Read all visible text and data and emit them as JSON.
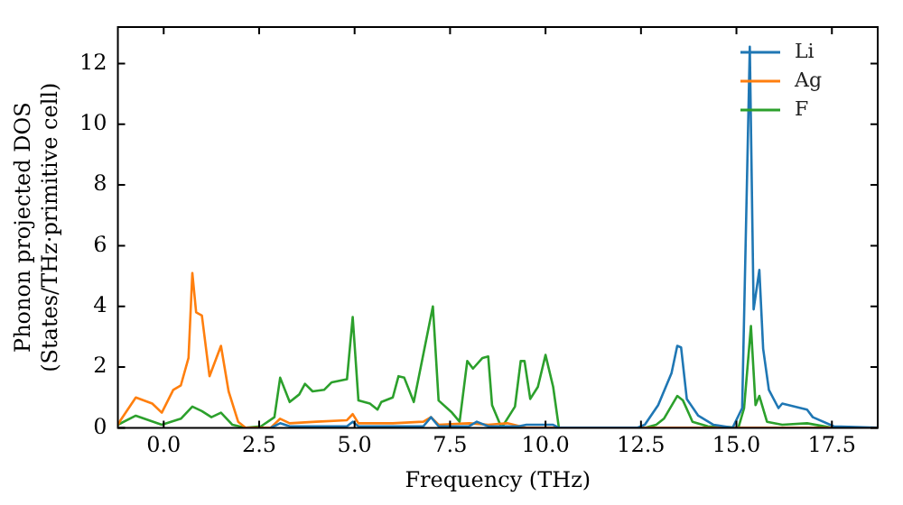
{
  "chart_data": {
    "type": "line",
    "xlabel": "Frequency (THz)",
    "ylabel": "Phonon projected DOS\n(States/THz·primitive cell)",
    "xlim": [
      -1.2,
      18.7
    ],
    "ylim": [
      0,
      13.2
    ],
    "xticks": [
      {
        "value": 0,
        "label": "0.0"
      },
      {
        "value": 2.5,
        "label": "2.5"
      },
      {
        "value": 5,
        "label": "5.0"
      },
      {
        "value": 7.5,
        "label": "7.5"
      },
      {
        "value": 10,
        "label": "10.0"
      },
      {
        "value": 12.5,
        "label": "12.5"
      },
      {
        "value": 15,
        "label": "15.0"
      },
      {
        "value": 17.5,
        "label": "17.5"
      }
    ],
    "yticks": [
      0,
      2,
      4,
      6,
      8,
      10,
      12
    ],
    "grid": false,
    "legend": "top right",
    "marker": "none",
    "line_style": "solid",
    "series": [
      {
        "name": "Li",
        "color": "#1f77b4",
        "x": [
          2.8,
          3.05,
          3.3,
          4.8,
          4.95,
          5.1,
          6.8,
          7.0,
          7.2,
          8.0,
          8.2,
          8.5,
          9.3,
          9.5,
          10.2,
          10.35,
          12.4,
          12.6,
          12.95,
          13.3,
          13.45,
          13.55,
          13.7,
          14.0,
          14.4,
          14.9,
          15.15,
          15.35,
          15.45,
          15.6,
          15.7,
          15.85,
          16.1,
          16.2,
          16.85,
          17.0,
          17.55,
          18.7
        ],
        "values": [
          0,
          0.15,
          0.05,
          0.05,
          0.2,
          0.05,
          0.05,
          0.35,
          0.05,
          0.05,
          0.2,
          0.05,
          0.05,
          0.1,
          0.1,
          0,
          0,
          0.1,
          0.75,
          1.8,
          2.7,
          2.65,
          0.95,
          0.4,
          0.1,
          0,
          0.65,
          12.55,
          3.9,
          5.2,
          2.6,
          1.25,
          0.65,
          0.8,
          0.6,
          0.35,
          0.05,
          0
        ]
      },
      {
        "name": "Ag",
        "color": "#ff7f0e",
        "x": [
          -1.2,
          -1.13,
          -0.73,
          -0.3,
          -0.05,
          0.25,
          0.45,
          0.65,
          0.75,
          0.85,
          1.0,
          1.2,
          1.5,
          1.7,
          1.95,
          2.15,
          2.8,
          3.05,
          3.3,
          4.0,
          4.8,
          4.95,
          5.1,
          6.0,
          6.8,
          7.0,
          7.2,
          8.0,
          8.5,
          9.0,
          9.5,
          10.35,
          18.7
        ],
        "values": [
          0.1,
          0.25,
          1.0,
          0.8,
          0.5,
          1.25,
          1.4,
          2.3,
          5.1,
          3.8,
          3.7,
          1.7,
          2.7,
          1.2,
          0.2,
          0,
          0,
          0.3,
          0.15,
          0.2,
          0.25,
          0.45,
          0.15,
          0.15,
          0.2,
          0.35,
          0.1,
          0.15,
          0.1,
          0.15,
          0,
          0,
          0
        ]
      },
      {
        "name": "F",
        "color": "#2ca02c",
        "x": [
          -1.2,
          -0.73,
          -0.05,
          0.45,
          0.75,
          1.0,
          1.25,
          1.5,
          1.8,
          2.15,
          2.55,
          2.9,
          3.05,
          3.3,
          3.55,
          3.7,
          3.9,
          4.2,
          4.4,
          4.8,
          4.95,
          5.1,
          5.4,
          5.6,
          5.7,
          6.0,
          6.15,
          6.3,
          6.55,
          7.05,
          7.2,
          7.55,
          7.75,
          7.95,
          8.1,
          8.35,
          8.5,
          8.6,
          8.85,
          9.2,
          9.35,
          9.45,
          9.6,
          9.8,
          10.0,
          10.2,
          10.35,
          12.6,
          12.9,
          13.1,
          13.45,
          13.6,
          13.85,
          14.25,
          15.05,
          15.2,
          15.38,
          15.5,
          15.6,
          15.8,
          16.2,
          16.85,
          17.5,
          18.7
        ],
        "values": [
          0.1,
          0.4,
          0.1,
          0.3,
          0.7,
          0.55,
          0.35,
          0.5,
          0.1,
          0,
          0.05,
          0.35,
          1.65,
          0.85,
          1.1,
          1.45,
          1.2,
          1.25,
          1.5,
          1.6,
          3.65,
          0.9,
          0.8,
          0.6,
          0.85,
          1.0,
          1.7,
          1.65,
          0.85,
          4.0,
          0.9,
          0.5,
          0.2,
          2.2,
          1.95,
          2.3,
          2.35,
          0.75,
          0,
          0.7,
          2.2,
          2.2,
          0.95,
          1.35,
          2.4,
          1.35,
          0,
          0,
          0.1,
          0.3,
          1.05,
          0.9,
          0.2,
          0.05,
          0,
          0.65,
          3.35,
          0.75,
          1.05,
          0.2,
          0.1,
          0.15,
          0,
          0
        ]
      }
    ]
  }
}
